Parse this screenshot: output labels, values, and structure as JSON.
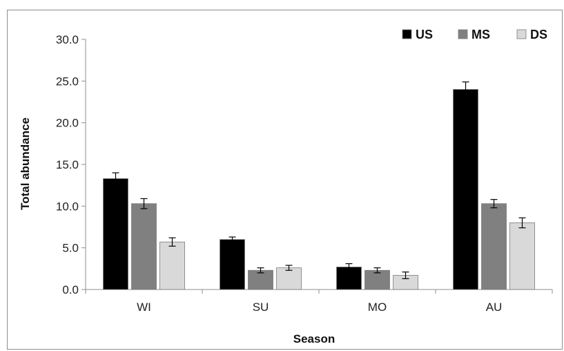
{
  "chart_data": {
    "type": "bar",
    "title": "",
    "xlabel": "Season",
    "ylabel": "Total abundance",
    "ylim": [
      0,
      30
    ],
    "yticks": [
      "0.0",
      "5.0",
      "10.0",
      "15.0",
      "20.0",
      "25.0",
      "30.0"
    ],
    "categories": [
      "WI",
      "SU",
      "MO",
      "AU"
    ],
    "legend_position": "top-right",
    "grid": false,
    "series": [
      {
        "name": "US",
        "color": "#000000",
        "values": [
          13.3,
          6.0,
          2.7,
          24.0
        ],
        "errors": [
          0.7,
          0.3,
          0.4,
          0.9
        ]
      },
      {
        "name": "MS",
        "color": "#808080",
        "values": [
          10.3,
          2.3,
          2.3,
          10.3
        ],
        "errors": [
          0.6,
          0.3,
          0.3,
          0.5
        ]
      },
      {
        "name": "DS",
        "color": "#d9d9d9",
        "values": [
          5.7,
          2.6,
          1.7,
          8.0
        ],
        "errors": [
          0.5,
          0.3,
          0.4,
          0.6
        ]
      }
    ]
  }
}
